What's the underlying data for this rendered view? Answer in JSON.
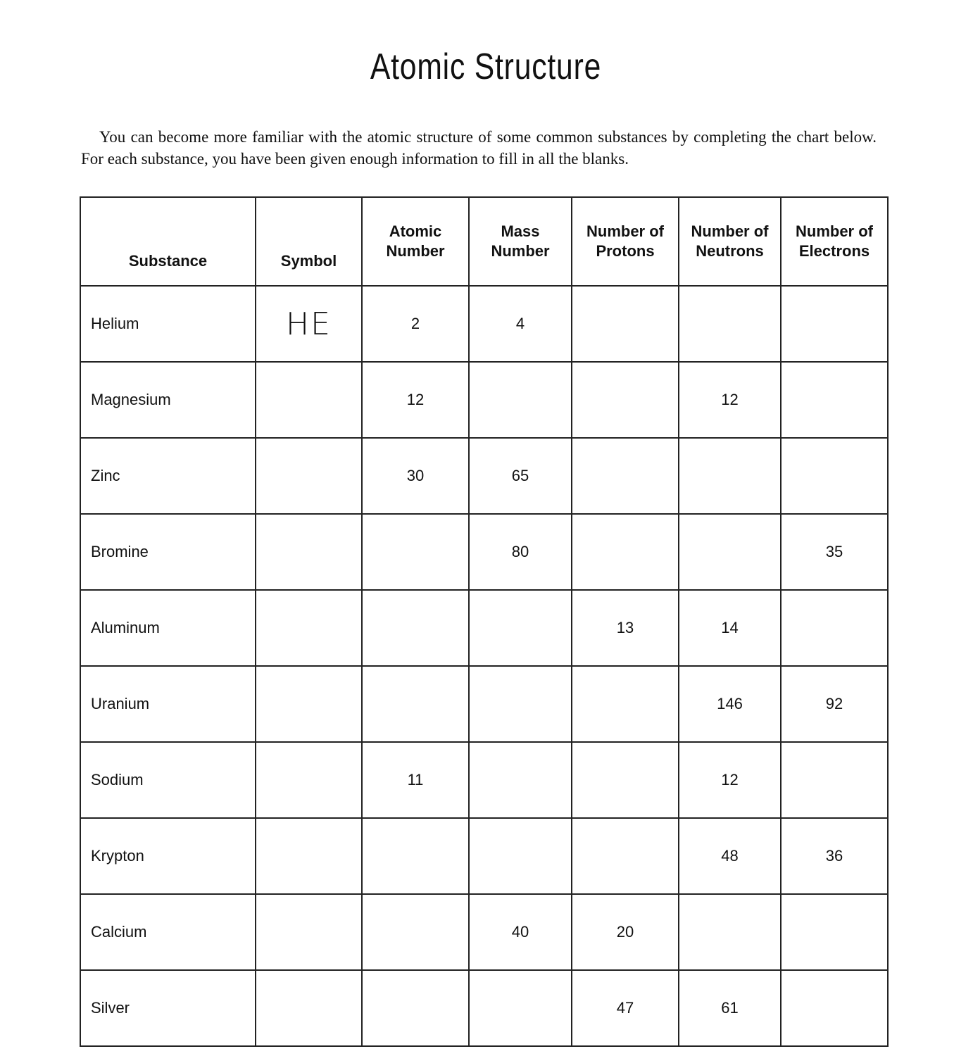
{
  "title": "Atomic Structure",
  "intro": "You can become more familiar with the atomic structure of some common substances by completing the chart below. For each substance, you have been given enough information to fill in all the blanks.",
  "table": {
    "headers": [
      "Substance",
      "Symbol",
      "Atomic Number",
      "Mass Number",
      "Number of Protons",
      "Number of Neutrons",
      "Number of Electrons"
    ],
    "rows": [
      [
        "Helium",
        "HE",
        "2",
        "4",
        "",
        "",
        ""
      ],
      [
        "Magnesium",
        "",
        "12",
        "",
        "",
        "12",
        ""
      ],
      [
        "Zinc",
        "",
        "30",
        "65",
        "",
        "",
        ""
      ],
      [
        "Bromine",
        "",
        "",
        "80",
        "",
        "",
        "35"
      ],
      [
        "Aluminum",
        "",
        "",
        "",
        "13",
        "14",
        ""
      ],
      [
        "Uranium",
        "",
        "",
        "",
        "",
        "146",
        "92"
      ],
      [
        "Sodium",
        "",
        "11",
        "",
        "",
        "12",
        ""
      ],
      [
        "Krypton",
        "",
        "",
        "",
        "",
        "48",
        "36"
      ],
      [
        "Calcium",
        "",
        "",
        "40",
        "20",
        "",
        ""
      ],
      [
        "Silver",
        "",
        "",
        "",
        "47",
        "61",
        ""
      ]
    ]
  }
}
